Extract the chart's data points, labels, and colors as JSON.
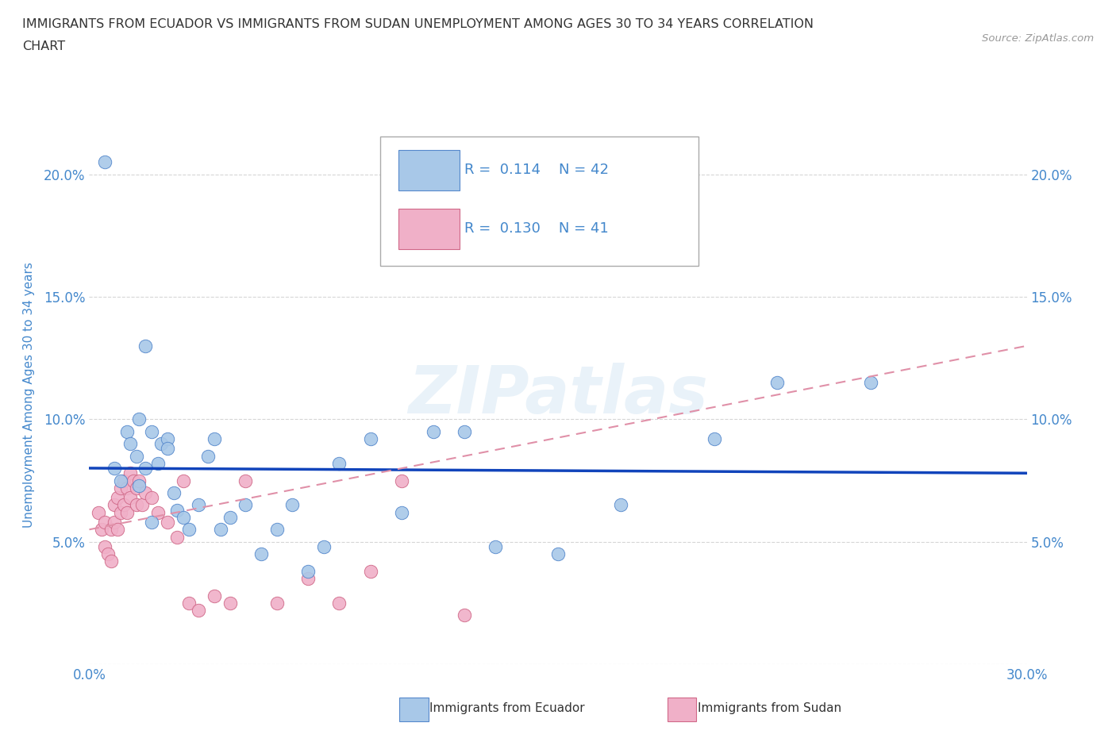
{
  "title_line1": "IMMIGRANTS FROM ECUADOR VS IMMIGRANTS FROM SUDAN UNEMPLOYMENT AMONG AGES 30 TO 34 YEARS CORRELATION",
  "title_line2": "CHART",
  "source_text": "Source: ZipAtlas.com",
  "ylabel": "Unemployment Among Ages 30 to 34 years",
  "xlim": [
    0.0,
    0.3
  ],
  "ylim": [
    0.0,
    0.22
  ],
  "ecuador_color": "#a8c8e8",
  "ecuador_edge": "#5588cc",
  "sudan_color": "#f0b0c8",
  "sudan_edge": "#d06888",
  "ecuador_line_color": "#1144bb",
  "sudan_line_color": "#e090a8",
  "R_ecuador": 0.114,
  "N_ecuador": 42,
  "R_sudan": 0.13,
  "N_sudan": 41,
  "ecuador_scatter_x": [
    0.005,
    0.008,
    0.01,
    0.012,
    0.013,
    0.015,
    0.016,
    0.018,
    0.018,
    0.02,
    0.022,
    0.023,
    0.025,
    0.027,
    0.028,
    0.03,
    0.032,
    0.035,
    0.038,
    0.04,
    0.042,
    0.045,
    0.05,
    0.055,
    0.06,
    0.065,
    0.07,
    0.075,
    0.08,
    0.09,
    0.1,
    0.11,
    0.12,
    0.13,
    0.15,
    0.17,
    0.2,
    0.22,
    0.25,
    0.016,
    0.02,
    0.025
  ],
  "ecuador_scatter_y": [
    0.205,
    0.08,
    0.075,
    0.095,
    0.09,
    0.085,
    0.1,
    0.08,
    0.13,
    0.095,
    0.082,
    0.09,
    0.092,
    0.07,
    0.063,
    0.06,
    0.055,
    0.065,
    0.085,
    0.092,
    0.055,
    0.06,
    0.065,
    0.045,
    0.055,
    0.065,
    0.038,
    0.048,
    0.082,
    0.092,
    0.062,
    0.095,
    0.095,
    0.048,
    0.045,
    0.065,
    0.092,
    0.115,
    0.115,
    0.073,
    0.058,
    0.088
  ],
  "sudan_scatter_x": [
    0.003,
    0.004,
    0.005,
    0.005,
    0.006,
    0.007,
    0.007,
    0.008,
    0.008,
    0.009,
    0.009,
    0.01,
    0.01,
    0.011,
    0.011,
    0.012,
    0.012,
    0.013,
    0.013,
    0.014,
    0.015,
    0.015,
    0.016,
    0.017,
    0.018,
    0.02,
    0.022,
    0.025,
    0.028,
    0.03,
    0.032,
    0.035,
    0.04,
    0.045,
    0.05,
    0.06,
    0.07,
    0.08,
    0.09,
    0.1,
    0.12
  ],
  "sudan_scatter_y": [
    0.062,
    0.055,
    0.058,
    0.048,
    0.045,
    0.055,
    0.042,
    0.065,
    0.058,
    0.068,
    0.055,
    0.072,
    0.062,
    0.075,
    0.065,
    0.072,
    0.062,
    0.078,
    0.068,
    0.075,
    0.072,
    0.065,
    0.075,
    0.065,
    0.07,
    0.068,
    0.062,
    0.058,
    0.052,
    0.075,
    0.025,
    0.022,
    0.028,
    0.025,
    0.075,
    0.025,
    0.035,
    0.025,
    0.038,
    0.075,
    0.02
  ],
  "watermark": "ZIPatlas",
  "background_color": "#ffffff",
  "grid_color": "#cccccc",
  "title_color": "#333333",
  "axis_label_color": "#4488cc",
  "tick_color": "#4488cc"
}
